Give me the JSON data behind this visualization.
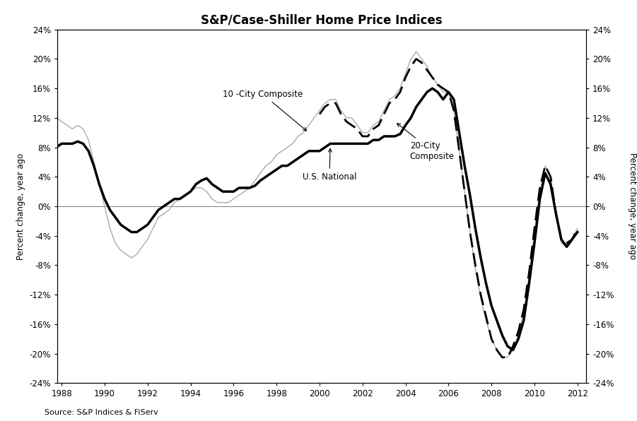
{
  "title": "S&P/Case-Shiller Home Price Indices",
  "source": "Source: S&P Indices & FiServ",
  "ylabel_left": "Percent change, year ago",
  "ylabel_right": "Percent change, year ago",
  "xlim": [
    1987.8,
    2012.4
  ],
  "ylim": [
    -24,
    24
  ],
  "yticks": [
    -24,
    -20,
    -16,
    -12,
    -8,
    -4,
    0,
    4,
    8,
    12,
    16,
    20,
    24
  ],
  "xticks": [
    1988,
    1990,
    1992,
    1994,
    1996,
    1998,
    2000,
    2002,
    2004,
    2006,
    2008,
    2010,
    2012
  ],
  "us_national": {
    "x": [
      1987.75,
      1988.0,
      1988.25,
      1988.5,
      1988.75,
      1989.0,
      1989.25,
      1989.5,
      1989.75,
      1990.0,
      1990.25,
      1990.5,
      1990.75,
      1991.0,
      1991.25,
      1991.5,
      1991.75,
      1992.0,
      1992.25,
      1992.5,
      1992.75,
      1993.0,
      1993.25,
      1993.5,
      1993.75,
      1994.0,
      1994.25,
      1994.5,
      1994.75,
      1995.0,
      1995.25,
      1995.5,
      1995.75,
      1996.0,
      1996.25,
      1996.5,
      1996.75,
      1997.0,
      1997.25,
      1997.5,
      1997.75,
      1998.0,
      1998.25,
      1998.5,
      1998.75,
      1999.0,
      1999.25,
      1999.5,
      1999.75,
      2000.0,
      2000.25,
      2000.5,
      2000.75,
      2001.0,
      2001.25,
      2001.5,
      2001.75,
      2002.0,
      2002.25,
      2002.5,
      2002.75,
      2003.0,
      2003.25,
      2003.5,
      2003.75,
      2004.0,
      2004.25,
      2004.5,
      2004.75,
      2005.0,
      2005.25,
      2005.5,
      2005.75,
      2006.0,
      2006.25,
      2006.5,
      2006.75,
      2007.0,
      2007.25,
      2007.5,
      2007.75,
      2008.0,
      2008.25,
      2008.5,
      2008.75,
      2009.0,
      2009.25,
      2009.5,
      2009.75,
      2010.0,
      2010.25,
      2010.5,
      2010.75,
      2011.0,
      2011.25,
      2011.5,
      2011.75,
      2012.0
    ],
    "y": [
      8.0,
      8.5,
      8.5,
      8.5,
      8.8,
      8.5,
      7.5,
      5.5,
      3.0,
      1.0,
      -0.5,
      -1.5,
      -2.5,
      -3.0,
      -3.5,
      -3.5,
      -3.0,
      -2.5,
      -1.5,
      -0.5,
      0.0,
      0.5,
      1.0,
      1.0,
      1.5,
      2.0,
      3.0,
      3.5,
      3.8,
      3.0,
      2.5,
      2.0,
      2.0,
      2.0,
      2.5,
      2.5,
      2.5,
      2.8,
      3.5,
      4.0,
      4.5,
      5.0,
      5.5,
      5.5,
      6.0,
      6.5,
      7.0,
      7.5,
      7.5,
      7.5,
      8.0,
      8.5,
      8.5,
      8.5,
      8.5,
      8.5,
      8.5,
      8.5,
      8.5,
      9.0,
      9.0,
      9.5,
      9.5,
      9.5,
      9.8,
      11.0,
      12.0,
      13.5,
      14.5,
      15.5,
      16.0,
      15.5,
      14.5,
      15.5,
      14.5,
      10.0,
      5.5,
      1.5,
      -3.0,
      -7.0,
      -10.5,
      -13.5,
      -15.5,
      -17.5,
      -19.0,
      -19.5,
      -18.0,
      -15.5,
      -10.5,
      -5.0,
      1.0,
      4.5,
      3.0,
      -1.0,
      -4.5,
      -5.5,
      -4.5,
      -3.5
    ]
  },
  "city10": {
    "x": [
      1987.75,
      1988.0,
      1988.25,
      1988.5,
      1988.75,
      1989.0,
      1989.25,
      1989.5,
      1989.75,
      1990.0,
      1990.25,
      1990.5,
      1990.75,
      1991.0,
      1991.25,
      1991.5,
      1991.75,
      1992.0,
      1992.25,
      1992.5,
      1992.75,
      1993.0,
      1993.25,
      1993.5,
      1993.75,
      1994.0,
      1994.25,
      1994.5,
      1994.75,
      1995.0,
      1995.25,
      1995.5,
      1995.75,
      1996.0,
      1996.25,
      1996.5,
      1996.75,
      1997.0,
      1997.25,
      1997.5,
      1997.75,
      1998.0,
      1998.25,
      1998.5,
      1998.75,
      1999.0,
      1999.25,
      1999.5,
      1999.75,
      2000.0,
      2000.25,
      2000.5,
      2000.75,
      2001.0,
      2001.25,
      2001.5,
      2001.75,
      2002.0,
      2002.25,
      2002.5,
      2002.75,
      2003.0,
      2003.25,
      2003.5,
      2003.75,
      2004.0,
      2004.25,
      2004.5,
      2004.75,
      2005.0,
      2005.25,
      2005.5,
      2005.75,
      2006.0,
      2006.25,
      2006.5,
      2006.75,
      2007.0,
      2007.25,
      2007.5,
      2007.75,
      2008.0,
      2008.25,
      2008.5,
      2008.75,
      2009.0,
      2009.25,
      2009.5,
      2009.75,
      2010.0,
      2010.25,
      2010.5,
      2010.75,
      2011.0,
      2011.25,
      2011.5,
      2011.75,
      2012.0
    ],
    "y": [
      12.0,
      11.5,
      11.0,
      10.5,
      11.0,
      10.5,
      9.0,
      6.0,
      3.0,
      0.0,
      -3.0,
      -5.0,
      -6.0,
      -6.5,
      -7.0,
      -6.5,
      -5.5,
      -4.5,
      -3.0,
      -1.5,
      -1.0,
      -0.5,
      0.5,
      1.0,
      1.5,
      2.0,
      2.5,
      2.5,
      2.0,
      1.0,
      0.5,
      0.5,
      0.5,
      1.0,
      1.5,
      2.0,
      2.5,
      3.5,
      4.5,
      5.5,
      6.0,
      7.0,
      7.5,
      8.0,
      8.5,
      9.5,
      10.0,
      11.0,
      12.0,
      13.0,
      14.0,
      14.5,
      14.5,
      13.0,
      12.0,
      12.0,
      11.0,
      10.0,
      10.0,
      11.0,
      11.5,
      13.0,
      14.5,
      15.0,
      16.0,
      18.0,
      20.0,
      21.0,
      20.0,
      19.0,
      17.5,
      16.5,
      15.5,
      15.5,
      13.0,
      7.5,
      2.0,
      -3.5,
      -8.5,
      -12.5,
      -15.5,
      -18.0,
      -19.5,
      -20.5,
      -20.5,
      -19.5,
      -17.5,
      -14.5,
      -9.5,
      -3.5,
      2.0,
      5.5,
      4.0,
      -1.0,
      -5.0,
      -5.5,
      -4.5,
      -3.0
    ]
  },
  "city20": {
    "x": [
      2000.0,
      2000.25,
      2000.5,
      2000.75,
      2001.0,
      2001.25,
      2001.5,
      2001.75,
      2002.0,
      2002.25,
      2002.5,
      2002.75,
      2003.0,
      2003.25,
      2003.5,
      2003.75,
      2004.0,
      2004.25,
      2004.5,
      2004.75,
      2005.0,
      2005.25,
      2005.5,
      2005.75,
      2006.0,
      2006.25,
      2006.5,
      2006.75,
      2007.0,
      2007.25,
      2007.5,
      2007.75,
      2008.0,
      2008.25,
      2008.5,
      2008.75,
      2009.0,
      2009.25,
      2009.5,
      2009.75,
      2010.0,
      2010.25,
      2010.5,
      2010.75,
      2011.0,
      2011.25,
      2011.5,
      2011.75,
      2012.0
    ],
    "y": [
      12.5,
      13.5,
      14.0,
      14.0,
      12.5,
      11.5,
      11.0,
      10.5,
      9.5,
      9.5,
      10.5,
      11.0,
      12.5,
      14.0,
      14.5,
      15.5,
      17.5,
      19.0,
      20.0,
      19.5,
      18.5,
      17.5,
      16.5,
      16.0,
      15.5,
      13.0,
      7.5,
      2.0,
      -3.5,
      -8.0,
      -12.0,
      -15.0,
      -18.0,
      -19.5,
      -20.5,
      -20.5,
      -19.0,
      -17.0,
      -14.0,
      -9.0,
      -3.0,
      2.5,
      5.5,
      4.0,
      -1.0,
      -4.5,
      -5.0,
      -4.5,
      -3.0
    ]
  }
}
